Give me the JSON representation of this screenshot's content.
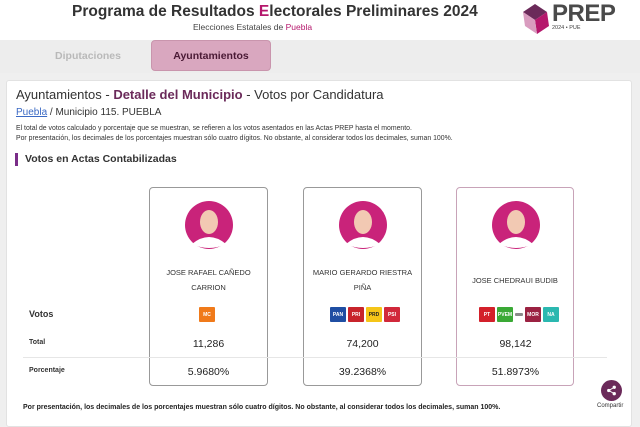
{
  "header": {
    "title_prefix": "Programa de Resultados ",
    "title_accent": "E",
    "title_suffix": "lectorales Preliminares 2024",
    "subtitle_prefix": "Elecciones Estatales de ",
    "subtitle_state": "Puebla",
    "logo_text": "PREP",
    "logo_sub": "2024 • PUE"
  },
  "tabs": [
    {
      "label": "Diputaciones",
      "active": false
    },
    {
      "label": "Ayuntamientos",
      "active": true
    }
  ],
  "page": {
    "title_lead": "Ayuntamientos - ",
    "title_detail": "Detalle del Municipio",
    "title_tail": " - Votos por Candidatura",
    "breadcrumb_link": "Puebla",
    "breadcrumb_rest": " / Municipio 115. PUEBLA",
    "note_1": "El total de votos calculado y porcentaje que se muestran, se refieren a los votos asentados en las Actas PREP hasta el momento.",
    "note_2": "Por presentación, los decimales de los porcentajes muestran sólo cuatro dígitos. No obstante, al considerar todos los decimales, suman 100%.",
    "section_title": "Votos en Actas Contabilizadas",
    "row_votos": "Votos",
    "row_total": "Total",
    "row_pct": "Porcentaje",
    "footer_note": "Por presentación, los decimales de los porcentajes muestran sólo cuatro dígitos. No obstante, al considerar todos los decimales, suman 100%."
  },
  "candidates": [
    {
      "name_line1": "JOSE RAFAEL CAÑEDO",
      "name_line2": "CARRION",
      "total": "11,286",
      "percent": "5.9680%",
      "parties": [
        {
          "label": "MC",
          "color": "#f07a1a"
        }
      ]
    },
    {
      "name_line1": "MARIO GERARDO RIESTRA",
      "name_line2": "PIÑA",
      "total": "74,200",
      "percent": "39.2368%",
      "parties": [
        {
          "label": "PAN",
          "color": "#1f4ea3"
        },
        {
          "label": "PRI",
          "color": "#c8242b"
        },
        {
          "label": "PRD",
          "color": "#f5c518"
        },
        {
          "label": "PSI",
          "color": "#d1283a"
        }
      ]
    },
    {
      "name_line1": "JOSE CHEDRAUI BUDIB",
      "name_line2": "",
      "total": "98,142",
      "percent": "51.8973%",
      "parties": [
        {
          "label": "PT",
          "color": "#d3202a"
        },
        {
          "label": "PVEM",
          "color": "#3aa935"
        },
        {
          "label": "",
          "color": "#8a8a8a"
        },
        {
          "label": "MOR",
          "color": "#9b2242"
        },
        {
          "label": "NA",
          "color": "#2bb8b0"
        }
      ]
    }
  ],
  "share": {
    "label": "Compartir"
  },
  "colors": {
    "accent": "#b5176c",
    "brand_purple": "#6b2a5a",
    "active_tab": "#d9a7bf"
  }
}
